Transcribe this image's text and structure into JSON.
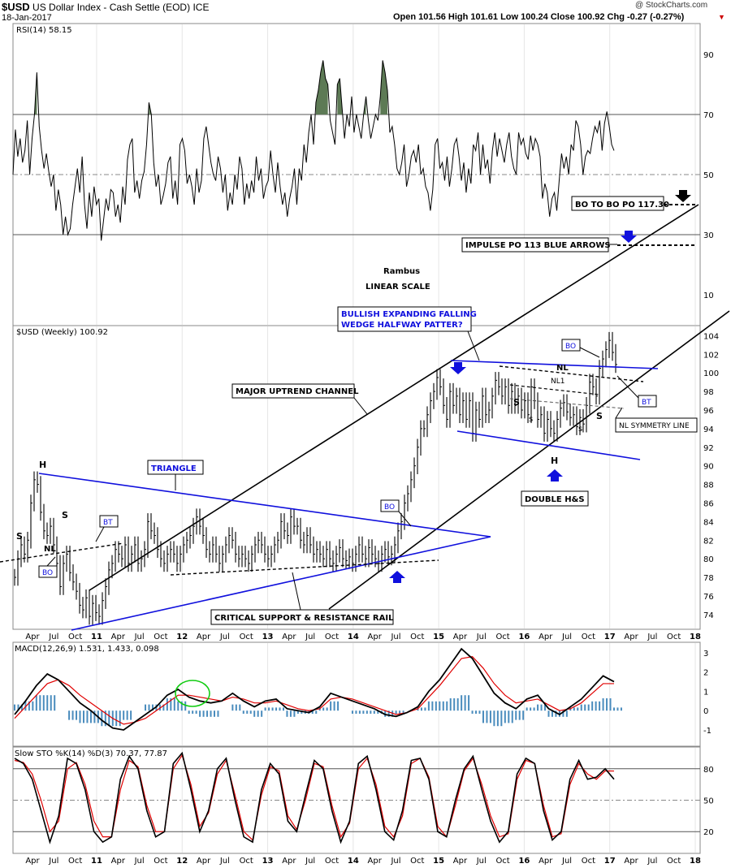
{
  "header": {
    "symbol": "$USD",
    "name": "US Dollar Index - Cash Settle (EOD)",
    "exchange": "ICE",
    "date": "18-Jan-2017",
    "watermark": "@ StockCharts.com",
    "ohlc_text": "Open 101.56  High 101.61  Low 100.24  Close 100.92  Chg -0.27 (-0.27%)"
  },
  "colors": {
    "annotation_blue": "#1010dd",
    "black": "#000000",
    "macd_signal": "#e00000",
    "histogram": "#4a8cbd",
    "rsi_fill": "#5d7a55",
    "grid": "#bbbbbb"
  },
  "chart_data": [
    {
      "type": "line",
      "panel": "RSI",
      "legend": "RSI(14) 58.15",
      "y_ticks": [
        10,
        30,
        50,
        70,
        90
      ],
      "ylim": [
        0,
        100
      ],
      "reference_lines": [
        70,
        50,
        30
      ],
      "series": [
        {
          "name": "RSI(14)",
          "values": [
            50,
            65,
            56,
            62,
            54,
            58,
            68,
            50,
            62,
            70,
            84,
            66,
            58,
            52,
            57,
            51,
            46,
            50,
            38,
            45,
            40,
            30,
            36,
            30,
            32,
            40,
            46,
            52,
            44,
            56,
            40,
            32,
            44,
            36,
            46,
            40,
            42,
            28,
            35,
            42,
            38,
            45,
            44,
            36,
            40,
            34,
            46,
            40,
            55,
            60,
            62,
            44,
            48,
            42,
            48,
            51,
            60,
            74,
            70,
            54,
            46,
            50,
            40,
            43,
            47,
            54,
            56,
            42,
            48,
            40,
            60,
            62,
            58,
            47,
            50,
            46,
            40,
            52,
            44,
            48,
            62,
            66,
            60,
            54,
            50,
            48,
            56,
            52,
            44,
            50,
            38,
            44,
            40,
            50,
            45,
            56,
            52,
            40,
            47,
            42,
            48,
            44,
            56,
            48,
            52,
            42,
            46,
            48,
            58,
            50,
            44,
            54,
            46,
            40,
            44,
            36,
            42,
            46,
            52,
            40,
            52,
            48,
            60,
            54,
            64,
            70,
            60,
            74,
            78,
            84,
            88,
            82,
            80,
            68,
            64,
            60,
            80,
            82,
            72,
            62,
            70,
            66,
            76,
            64,
            70,
            66,
            62,
            70,
            76,
            68,
            62,
            66,
            70,
            68,
            76,
            88,
            84,
            78,
            64,
            66,
            60,
            52,
            50,
            54,
            60,
            46,
            50,
            56,
            58,
            54,
            60,
            50,
            52,
            46,
            44,
            38,
            45,
            60,
            62,
            52,
            54,
            48,
            56,
            46,
            52,
            60,
            62,
            56,
            48,
            54,
            44,
            52,
            47,
            60,
            58,
            64,
            50,
            60,
            52,
            55,
            47,
            58,
            64,
            56,
            62,
            58,
            54,
            60,
            64,
            56,
            52,
            50,
            64,
            60,
            62,
            57,
            55,
            63,
            58,
            62,
            60,
            56,
            42,
            47,
            44,
            36,
            42,
            44,
            38,
            48,
            57,
            52,
            56,
            50,
            60,
            58,
            68,
            66,
            60,
            50,
            56,
            58,
            57,
            62,
            66,
            64,
            68,
            58,
            67,
            71,
            66,
            60,
            58
          ]
        }
      ]
    },
    {
      "type": "line",
      "panel": "Price (Weekly)",
      "legend": "$USD (Weekly) 100.92",
      "scale": "linear",
      "x_ticks": [
        "Apr",
        "Jul",
        "Oct",
        "11",
        "Apr",
        "Jul",
        "Oct",
        "12",
        "Apr",
        "Jul",
        "Oct",
        "13",
        "Apr",
        "Jul",
        "Oct",
        "14",
        "Apr",
        "Jul",
        "Oct",
        "15",
        "Apr",
        "Jul",
        "Oct",
        "16",
        "Apr",
        "Jul",
        "Oct",
        "17",
        "Apr",
        "Jul",
        "Oct",
        "18"
      ],
      "y_ticks": [
        74,
        76,
        78,
        80,
        82,
        84,
        86,
        88,
        90,
        92,
        94,
        96,
        98,
        100,
        102,
        104
      ],
      "ylim": [
        72.5,
        105
      ],
      "series": [
        {
          "name": "$USD",
          "values": [
            78,
            80,
            81.5,
            80.5,
            82,
            86,
            88.5,
            88,
            85,
            83,
            82.5,
            83.5,
            81.5,
            79.5,
            77,
            79.5,
            80.5,
            78.5,
            77.5,
            76.5,
            75,
            74.5,
            75.8,
            73.8,
            75.2,
            74.2,
            73.8,
            75.5,
            77,
            78.8,
            79.5,
            81,
            80.5,
            80,
            81.5,
            79.5,
            80.5,
            81.5,
            79.5,
            80,
            81,
            84,
            83,
            82.5,
            81,
            80,
            79.5,
            80.5,
            81,
            80.5,
            79.5,
            80.5,
            81.5,
            82,
            82.5,
            83.5,
            84.5,
            83.5,
            82.5,
            81,
            80.5,
            81.5,
            80.5,
            79.5,
            80.5,
            81.5,
            82.5,
            82,
            80.5,
            80,
            80.5,
            80,
            79.5,
            80.5,
            81.5,
            82,
            81.5,
            80.5,
            80,
            80.5,
            81.5,
            82,
            84,
            83,
            82.5,
            84.5,
            83.5,
            83.5,
            82,
            81.5,
            82.5,
            81.5,
            80.5,
            81,
            80.5,
            80,
            81,
            80,
            79.5,
            80.5,
            81.2,
            80,
            79.8,
            80.2,
            79.5,
            80.5,
            81.5,
            80.5,
            80,
            81.2,
            80.5,
            80,
            79.5,
            80.5,
            81,
            80.2,
            80.5,
            81.5,
            83,
            84,
            86,
            87,
            88.5,
            90,
            92,
            94,
            94,
            95.5,
            97,
            98,
            99.5,
            98.5,
            96.5,
            95,
            98,
            96.5,
            97.5,
            95.5,
            97,
            95,
            97,
            93.5,
            96,
            95,
            97.5,
            95.5,
            96,
            97.5,
            99.2,
            98.5,
            97.5,
            98.5,
            96.5,
            98,
            96.5,
            97.5,
            96,
            97,
            95.5,
            98.5,
            97,
            95,
            95.5,
            93.5,
            95,
            94,
            93.5,
            95,
            96.2,
            96.8,
            95.8,
            95.2,
            95.5,
            94.2,
            95.2,
            94.5,
            96.5,
            99,
            98.5,
            97.5,
            100.5,
            101.5,
            102.5,
            103.5,
            102.2,
            100.9
          ]
        }
      ]
    },
    {
      "type": "line",
      "panel": "MACD",
      "legend": "MACD(12,26,9) 1.531, 1.433, 0.098",
      "y_ticks": [
        -1,
        0,
        1,
        2,
        3
      ],
      "ylim": [
        -1.8,
        3.5
      ],
      "series": [
        {
          "name": "MACD",
          "values": [
            -0.2,
            0.5,
            1.3,
            1.9,
            1.6,
            1.0,
            0.4,
            0.0,
            -0.5,
            -0.9,
            -1.0,
            -0.6,
            -0.2,
            0.2,
            0.8,
            1.1,
            0.7,
            0.5,
            0.4,
            0.5,
            0.9,
            0.5,
            0.2,
            0.5,
            0.6,
            0.1,
            0.0,
            -0.1,
            0.2,
            0.9,
            0.7,
            0.5,
            0.3,
            0.1,
            -0.2,
            -0.3,
            -0.1,
            0.2,
            1.0,
            1.6,
            2.4,
            3.2,
            2.7,
            1.8,
            0.9,
            0.4,
            0.1,
            0.6,
            0.8,
            0.1,
            -0.2,
            0.2,
            0.6,
            1.2,
            1.8,
            1.5
          ]
        },
        {
          "name": "Signal",
          "values": [
            -0.4,
            0.2,
            0.8,
            1.4,
            1.6,
            1.3,
            0.8,
            0.4,
            0.0,
            -0.4,
            -0.7,
            -0.6,
            -0.4,
            0.0,
            0.4,
            0.8,
            0.8,
            0.7,
            0.6,
            0.5,
            0.7,
            0.6,
            0.4,
            0.4,
            0.5,
            0.3,
            0.1,
            0.0,
            0.1,
            0.6,
            0.7,
            0.6,
            0.4,
            0.2,
            0.0,
            -0.2,
            -0.1,
            0.1,
            0.7,
            1.3,
            2.0,
            2.7,
            2.8,
            2.2,
            1.4,
            0.8,
            0.4,
            0.5,
            0.6,
            0.3,
            0.0,
            0.1,
            0.4,
            0.9,
            1.4,
            1.4
          ]
        }
      ]
    },
    {
      "type": "line",
      "panel": "Slow STO",
      "legend": "Slow STO %K(14) %D(3) 70.37, 77.87",
      "y_ticks": [
        20,
        50,
        80
      ],
      "ylim": [
        0,
        100
      ],
      "series": [
        {
          "name": "%K",
          "values": [
            90,
            85,
            70,
            40,
            10,
            35,
            90,
            85,
            60,
            20,
            10,
            15,
            70,
            92,
            80,
            40,
            15,
            20,
            85,
            95,
            60,
            20,
            40,
            80,
            90,
            50,
            15,
            10,
            60,
            85,
            75,
            30,
            20,
            55,
            88,
            80,
            40,
            10,
            30,
            85,
            92,
            60,
            20,
            12,
            40,
            88,
            90,
            70,
            20,
            15,
            50,
            80,
            92,
            60,
            30,
            10,
            20,
            75,
            90,
            85,
            40,
            12,
            20,
            70,
            88,
            70,
            72,
            80,
            70
          ]
        },
        {
          "name": "%D",
          "values": [
            88,
            86,
            75,
            50,
            20,
            30,
            80,
            86,
            65,
            30,
            15,
            15,
            60,
            88,
            82,
            45,
            20,
            20,
            80,
            93,
            65,
            25,
            38,
            75,
            88,
            55,
            20,
            12,
            55,
            82,
            78,
            35,
            22,
            50,
            85,
            82,
            45,
            15,
            28,
            80,
            90,
            65,
            25,
            15,
            35,
            85,
            90,
            72,
            25,
            15,
            45,
            78,
            90,
            65,
            35,
            15,
            18,
            70,
            88,
            85,
            45,
            15,
            18,
            65,
            85,
            75,
            70,
            78,
            77.87
          ]
        }
      ]
    }
  ],
  "annotations": {
    "rambus": "Rambus",
    "linear_scale": "LINEAR SCALE",
    "bo_to_bo": "BO TO BO PO 117.30",
    "impulse_po": "IMPULSE PO 113 BLUE ARROWS",
    "bullish_wedge": "BULLISH EXPANDING FALLING WEDGE HALFWAY PATTER?",
    "major_uptrend": "MAJOR UPTREND CHANNEL",
    "triangle": "TRIANGLE",
    "critical_rail": "CRITICAL SUPPORT & RESISTANCE RAIL",
    "double_hs": "DOUBLE H&S",
    "nl_symmetry": "NL SYMMETRY LINE",
    "bo": "BO",
    "bt": "BT",
    "nl": "NL",
    "nl1": "NL1",
    "h": "H",
    "s": "S",
    "s_small": "s"
  }
}
